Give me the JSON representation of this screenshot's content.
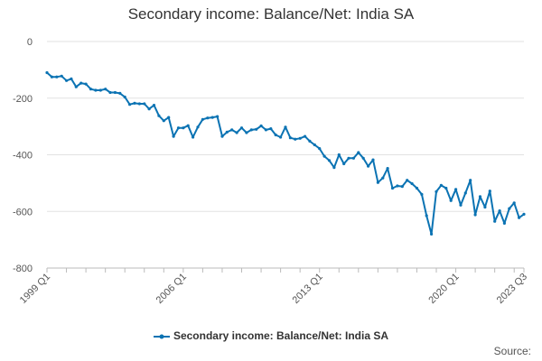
{
  "chart_data": {
    "type": "line",
    "title": "Secondary income: Balance/Net: India SA",
    "ylim": [
      -800,
      0
    ],
    "yticks": [
      0,
      -200,
      -400,
      -600,
      -800
    ],
    "xrange": [
      "1999 Q1",
      "2023 Q3"
    ],
    "xtick_labels": [
      "1999 Q1",
      "2006 Q1",
      "2013 Q1",
      "2020 Q1",
      "2023 Q3"
    ],
    "grid": true,
    "legend_position": "bottom",
    "series": [
      {
        "name": "Secondary income: Balance/Net: India SA",
        "color": "#0b73b3",
        "x_start": "1999 Q1",
        "values": [
          -110,
          -125,
          -125,
          -122,
          -138,
          -132,
          -160,
          -147,
          -150,
          -168,
          -172,
          -172,
          -168,
          -180,
          -180,
          -183,
          -196,
          -222,
          -218,
          -220,
          -220,
          -238,
          -225,
          -262,
          -280,
          -268,
          -335,
          -305,
          -305,
          -297,
          -338,
          -302,
          -275,
          -270,
          -268,
          -265,
          -335,
          -320,
          -312,
          -322,
          -305,
          -322,
          -312,
          -310,
          -298,
          -312,
          -308,
          -330,
          -338,
          -302,
          -340,
          -345,
          -342,
          -335,
          -352,
          -365,
          -378,
          -405,
          -420,
          -445,
          -400,
          -432,
          -412,
          -412,
          -392,
          -412,
          -440,
          -418,
          -498,
          -482,
          -448,
          -518,
          -510,
          -512,
          -490,
          -502,
          -518,
          -540,
          -615,
          -680,
          -530,
          -508,
          -518,
          -562,
          -522,
          -578,
          -535,
          -490,
          -612,
          -548,
          -585,
          -528,
          -635,
          -598,
          -642,
          -590,
          -570,
          -622,
          -610
        ]
      }
    ]
  },
  "legend": {
    "label": "Secondary income: Balance/Net: India SA"
  },
  "source": {
    "label": "Source:"
  }
}
